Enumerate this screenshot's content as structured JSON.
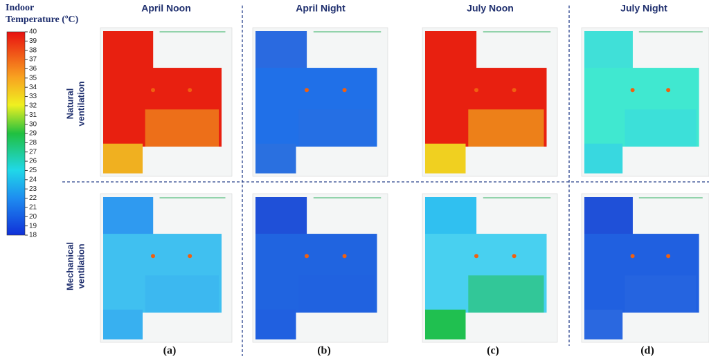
{
  "legend": {
    "title_lines": [
      "Indoor",
      "Temperature (ºC)"
    ],
    "range": [
      18,
      40
    ],
    "ticks": [
      18,
      19,
      20,
      21,
      22,
      23,
      24,
      25,
      26,
      27,
      28,
      29,
      30,
      31,
      32,
      33,
      34,
      35,
      36,
      37,
      38,
      39,
      40
    ]
  },
  "columns": [
    "April Noon",
    "April Night",
    "July Noon",
    "July Night"
  ],
  "rows": [
    [
      "Natural",
      "ventilation"
    ],
    [
      "Mechanical",
      "ventilation"
    ]
  ],
  "panels": [
    "(a)",
    "(b)",
    "(c)",
    "(d)"
  ]
}
